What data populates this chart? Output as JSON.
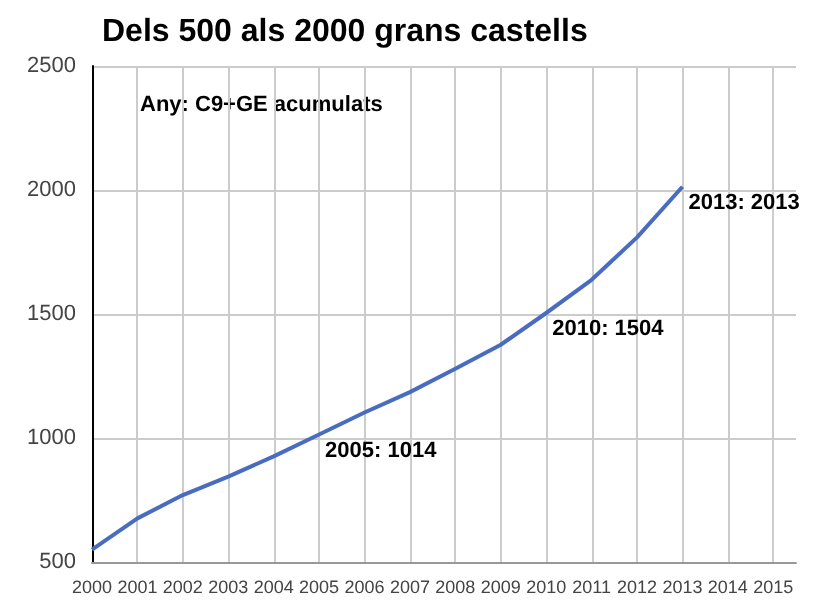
{
  "chart_data": {
    "type": "line",
    "title": "Dels 500 als 2000 grans castells",
    "x": [
      2000,
      2001,
      2002,
      2003,
      2004,
      2005,
      2006,
      2007,
      2008,
      2009,
      2010,
      2011,
      2012,
      2013
    ],
    "series": [
      {
        "color": "#4a6cc0",
        "values": [
          550,
          676,
          770,
          844,
          926,
          1014,
          1103,
          1185,
          1279,
          1376,
          1504,
          1638,
          1809,
          2013
        ]
      }
    ],
    "xlim": [
      2000,
      2015.5
    ],
    "xticks": [
      2000,
      2001,
      2002,
      2003,
      2004,
      2005,
      2006,
      2007,
      2008,
      2009,
      2010,
      2011,
      2012,
      2013,
      2014,
      2015
    ],
    "ylim": [
      500,
      2500
    ],
    "yticks": [
      500,
      1000,
      1500,
      2000,
      2500
    ],
    "grid": true,
    "marker": "none",
    "line_style": "solid",
    "annotations": [
      "Any: C9+GE acumulats",
      {
        "text": "2005: 1014",
        "x": 2005,
        "y": 1014
      },
      {
        "text": "2010: 1504",
        "x": 2010,
        "y": 1504
      },
      {
        "text": "2013: 2013",
        "x": 2013,
        "y": 2013
      }
    ]
  }
}
